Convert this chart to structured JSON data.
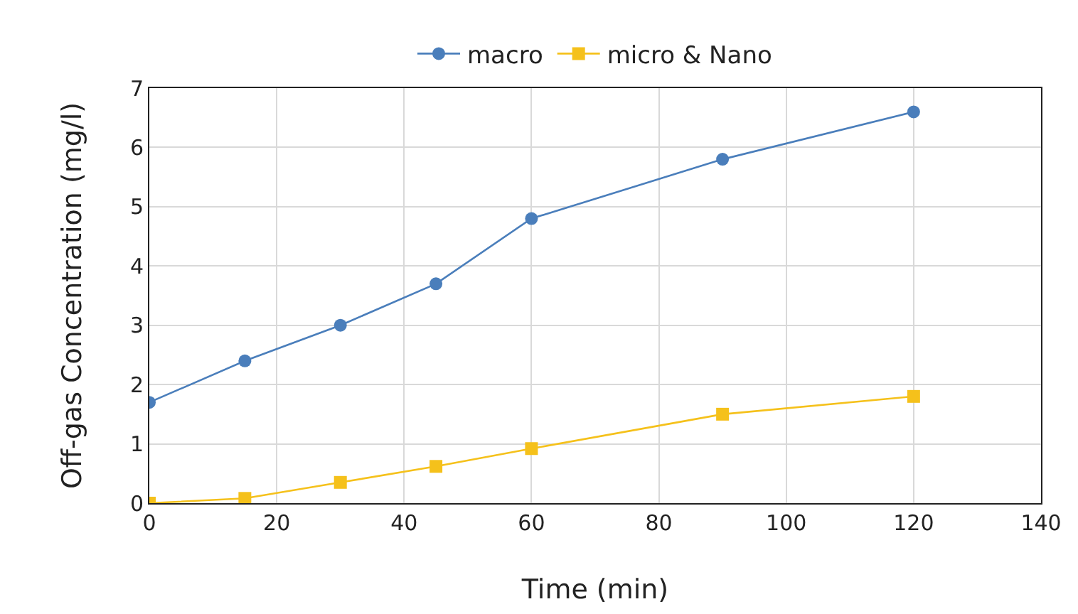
{
  "chart_data": {
    "type": "line",
    "xlabel": "Time (min)",
    "ylabel": "Off-gas Concentration (mg/l)",
    "x": [
      0,
      15,
      30,
      45,
      60,
      90,
      120
    ],
    "series": [
      {
        "name": "macro",
        "color": "#4a7ebb",
        "marker": "circle",
        "values": [
          1.7,
          2.4,
          3.0,
          3.7,
          4.8,
          5.8,
          6.6
        ]
      },
      {
        "name": "micro & Nano",
        "color": "#f5c11b",
        "marker": "square",
        "values": [
          0,
          0.08,
          0.35,
          0.62,
          0.92,
          1.5,
          1.8
        ]
      }
    ],
    "xlim": [
      0,
      140
    ],
    "xticks": [
      0,
      20,
      40,
      60,
      80,
      100,
      120,
      140
    ],
    "ylim": [
      0,
      7
    ],
    "yticks": [
      0,
      1,
      2,
      3,
      4,
      5,
      6,
      7
    ],
    "grid": true,
    "legend": "top"
  }
}
